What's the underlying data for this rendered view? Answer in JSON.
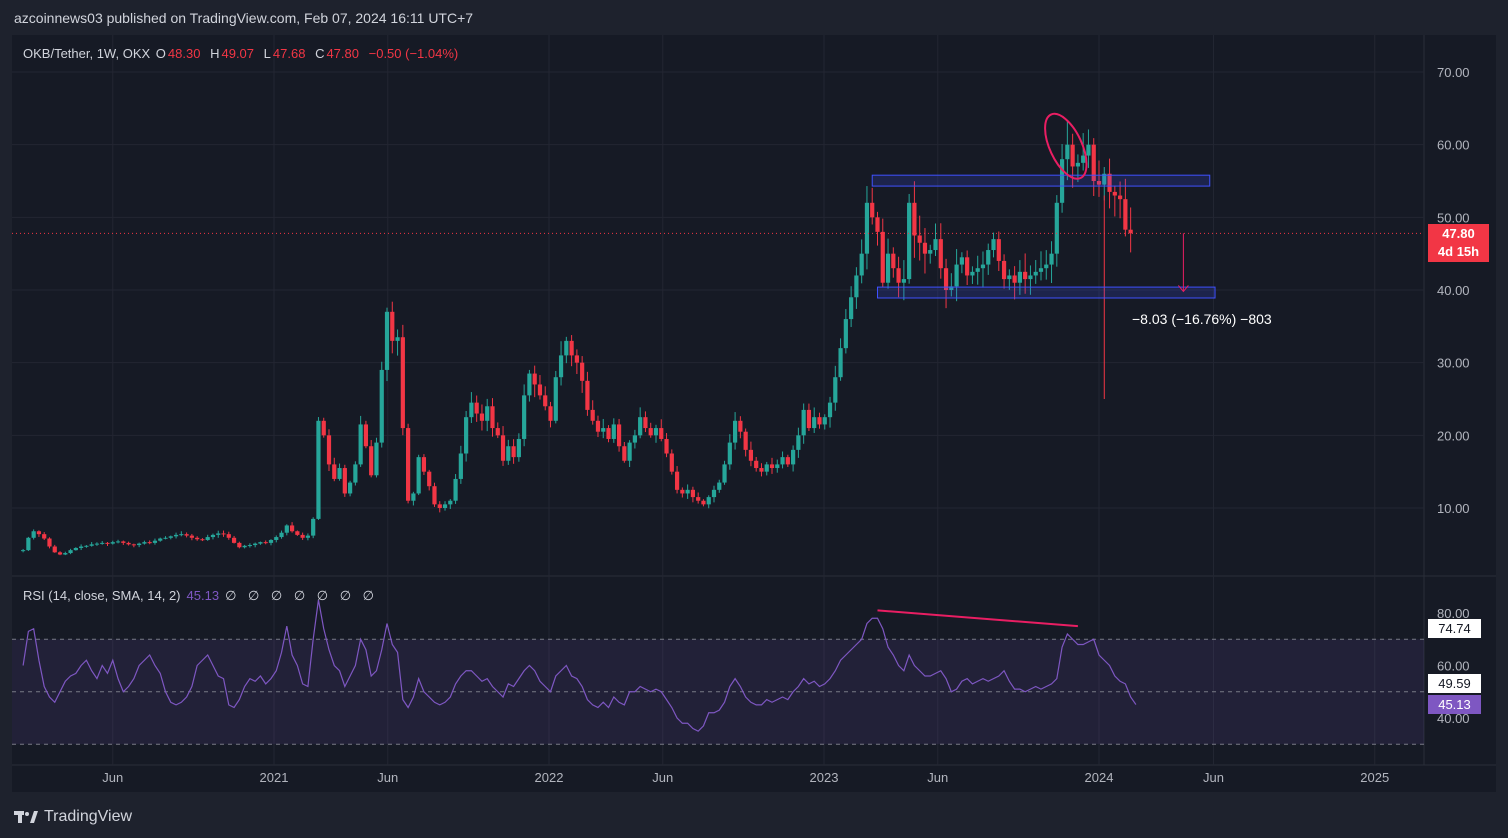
{
  "header": {
    "publisher_line": "azcoinnews03 published on TradingView.com, Feb 07, 2024 16:11 UTC+7"
  },
  "legend": {
    "symbol": "OKB/Tether, 1W, OKX",
    "o_key": "O",
    "o_val": "48.30",
    "h_key": "H",
    "h_val": "49.07",
    "l_key": "L",
    "l_val": "47.68",
    "c_key": "C",
    "c_val": "47.80",
    "change": "−0.50 (−1.04%)"
  },
  "price_tag": {
    "price": "47.80",
    "countdown": "4d 15h"
  },
  "measure": {
    "label": "−8.03 (−16.76%) −803"
  },
  "rsi": {
    "legend_label": "RSI (14, close, SMA, 14, 2)",
    "value": "45.13",
    "extra": "∅ ∅ ∅ ∅ ∅ ∅ ∅",
    "tags": {
      "upper": "74.74",
      "mid": "49.59",
      "current": "45.13"
    },
    "axis_labels": [
      "80.00",
      "60.00",
      "40.00"
    ]
  },
  "footer": {
    "brand": "TradingView"
  },
  "colors": {
    "up": "#26a69a",
    "down": "#f23645",
    "rsi_line": "#7e57c2",
    "box_border": "#3f51ff",
    "annotation": "#e91e63",
    "background": "#161a25"
  },
  "chart_data": {
    "type": "candlestick",
    "symbol": "OKB/Tether",
    "interval": "1W",
    "exchange": "OKX",
    "price_axis": {
      "labels": [
        "70.00",
        "60.00",
        "50.00",
        "40.00",
        "30.00",
        "20.00",
        "10.00"
      ],
      "range": [
        1.5,
        75
      ]
    },
    "time_axis": {
      "labels": [
        "Jun",
        "2021",
        "Jun",
        "2022",
        "Jun",
        "2023",
        "Jun",
        "2024",
        "Jun",
        "2025"
      ]
    },
    "grid": true,
    "series": [
      {
        "name": "OKB/Tether",
        "start": "2020-02-03",
        "close": [
          4.2,
          5.9,
          6.8,
          6.4,
          5.8,
          4.7,
          3.9,
          3.6,
          3.8,
          4.2,
          4.5,
          4.7,
          4.8,
          5.0,
          5.1,
          5.2,
          5.1,
          5.3,
          5.4,
          5.2,
          5.0,
          4.9,
          5.1,
          5.3,
          5.2,
          5.5,
          5.8,
          5.9,
          6.1,
          6.3,
          6.4,
          6.2,
          5.9,
          5.7,
          5.6,
          6.0,
          6.3,
          6.5,
          6.4,
          5.9,
          5.2,
          4.6,
          4.8,
          4.9,
          5.1,
          5.3,
          5.2,
          5.6,
          6.0,
          6.6,
          7.6,
          6.8,
          6.3,
          5.9,
          6.2,
          8.5,
          22.0,
          20.0,
          16.0,
          14.0,
          15.5,
          12.0,
          13.5,
          16.0,
          21.5,
          18.5,
          14.5,
          19.0,
          29.0,
          37.0,
          33.0,
          33.5,
          21.0,
          11.0,
          12.0,
          17.0,
          15.0,
          13.0,
          10.5,
          10.0,
          10.5,
          11.0,
          14.0,
          17.5,
          22.5,
          24.5,
          23.0,
          22.0,
          24.0,
          21.0,
          20.0,
          16.5,
          18.5,
          17.0,
          19.5,
          25.5,
          28.5,
          27.0,
          25.5,
          24.0,
          22.0,
          28.0,
          31.0,
          33.0,
          31.0,
          30.0,
          27.5,
          23.5,
          22.0,
          20.5,
          21.0,
          19.5,
          21.5,
          18.5,
          16.5,
          19.0,
          20.0,
          22.5,
          21.0,
          20.0,
          21.0,
          19.5,
          17.5,
          15.0,
          12.5,
          12.0,
          12.5,
          11.5,
          11.0,
          10.5,
          11.5,
          12.5,
          13.5,
          16.0,
          19.0,
          22.0,
          20.5,
          18.0,
          16.5,
          15.5,
          15.0,
          16.0,
          15.5,
          16.0,
          17.0,
          16.0,
          18.0,
          20.0,
          23.5,
          21.0,
          22.5,
          21.5,
          22.5,
          24.5,
          28.0,
          32.0,
          36.0,
          39.0,
          42.0,
          45.0,
          52.0,
          50.0,
          48.0,
          41.0,
          45.0,
          43.0,
          41.0,
          41.5,
          52.0,
          47.5,
          46.5,
          45.0,
          45.5,
          47.0,
          43.0,
          40.0,
          40.5,
          43.5,
          44.5,
          42.0,
          42.5,
          43.0,
          43.5,
          45.5,
          47.0,
          44.0,
          41.5,
          42.0,
          41.0,
          42.5,
          41.5,
          42.0,
          42.5,
          43.0,
          43.5,
          45.0,
          52.0,
          58.0,
          60.0,
          57.0,
          57.5,
          58.5,
          60.0,
          55.0,
          54.5,
          56.0,
          53.5,
          53.0,
          52.5,
          48.3,
          47.8
        ]
      },
      {
        "name": "RSI (14, close, SMA, 14, 2)",
        "values": [
          60,
          73,
          74,
          62,
          52,
          48,
          46,
          50,
          54,
          56,
          57,
          60,
          62,
          58,
          55,
          60,
          57,
          62,
          55,
          50,
          52,
          55,
          60,
          62,
          64,
          60,
          57,
          50,
          46,
          45,
          46,
          48,
          52,
          60,
          62,
          64,
          60,
          56,
          55,
          45,
          44,
          47,
          52,
          55,
          54,
          56,
          53,
          55,
          58,
          65,
          75,
          64,
          60,
          53,
          52,
          70,
          85,
          74,
          66,
          60,
          58,
          52,
          56,
          60,
          70,
          66,
          56,
          58,
          66,
          76,
          68,
          65,
          47,
          44,
          48,
          55,
          50,
          48,
          46,
          45,
          46,
          48,
          53,
          56,
          58,
          58,
          56,
          54,
          55,
          52,
          50,
          48,
          53,
          52,
          55,
          58,
          60,
          58,
          54,
          52,
          50,
          56,
          58,
          60,
          56,
          55,
          52,
          47,
          45,
          44,
          46,
          44,
          48,
          46,
          45,
          50,
          50,
          52,
          51,
          50,
          51,
          50,
          47,
          44,
          40,
          38,
          38,
          36,
          35,
          37,
          42,
          42,
          43,
          46,
          52,
          55,
          52,
          48,
          46,
          45,
          45,
          47,
          46,
          47,
          48,
          47,
          50,
          52,
          55,
          53,
          54,
          52,
          53,
          55,
          58,
          62,
          64,
          66,
          68,
          70,
          76,
          78,
          78,
          74,
          67,
          64,
          60,
          58,
          64,
          60,
          58,
          56,
          56,
          57,
          58,
          55,
          50,
          51,
          54,
          55,
          53,
          54,
          55,
          54,
          55,
          56,
          58,
          54,
          51,
          51,
          50,
          51,
          52,
          51,
          52,
          53,
          55,
          67,
          72,
          70,
          68,
          68,
          69,
          70,
          64,
          62,
          60,
          56,
          54,
          53,
          48,
          45.13
        ]
      }
    ],
    "annotations": [
      {
        "type": "rectangle",
        "price_top": 55.8,
        "price_bottom": 54.3,
        "from": "2023-03-06",
        "to": "2024-05-27"
      },
      {
        "type": "rectangle",
        "price_top": 40.4,
        "price_bottom": 38.9,
        "from": "2023-03-13",
        "to": "2024-06-03"
      },
      {
        "type": "ellipse",
        "center_date": "2023-11-06",
        "center_price": 59.5
      },
      {
        "type": "arrow",
        "from_price": 47.8,
        "to_price": 39.8,
        "date": "2024-04-22"
      },
      {
        "type": "rsi_trendline",
        "from_value": 81,
        "to_value": 75,
        "from": "2023-03-13",
        "to": "2023-12-04"
      }
    ]
  }
}
